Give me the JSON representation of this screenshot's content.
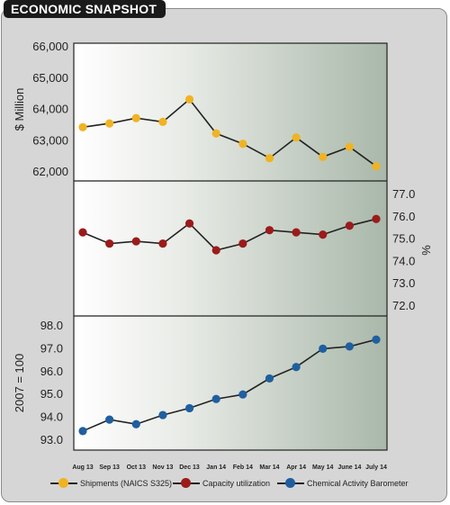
{
  "header": {
    "title": "ECONOMIC SNAPSHOT"
  },
  "chart_data": {
    "type": "line",
    "categories": [
      "Aug 13",
      "Sep 13",
      "Oct 13",
      "Nov 13",
      "Dec 13",
      "Jan 14",
      "Feb 14",
      "Mar 14",
      "Apr 14",
      "May 14",
      "June 14",
      "July 14"
    ],
    "panels": [
      {
        "series_name": "Shipments (NAICS S325)",
        "color": "#f0b323",
        "ylabel": "$ Million",
        "yticks": [
          "66,000",
          "65,000",
          "64,000",
          "63,000",
          "62,000"
        ],
        "ylim": [
          62000,
          66000
        ],
        "axis_side": "left",
        "values": [
          63430,
          63550,
          63720,
          63600,
          64320,
          63230,
          62900,
          62440,
          63100,
          62480,
          62800,
          62180
        ]
      },
      {
        "series_name": "Capacity utilization",
        "color": "#9b1b1b",
        "ylabel": "%",
        "yticks": [
          "77.0",
          "76.0",
          "75.0",
          "74.0",
          "73.0",
          "72.0"
        ],
        "ylim": [
          72,
          77
        ],
        "axis_side": "right",
        "values": [
          75.3,
          74.8,
          74.9,
          74.8,
          75.7,
          74.5,
          74.8,
          75.4,
          75.3,
          75.2,
          75.6,
          75.9
        ]
      },
      {
        "series_name": "Chemical Activity Barometer",
        "color": "#1f5fa0",
        "ylabel": "2007 = 100",
        "yticks": [
          "98.0",
          "97.0",
          "96.0",
          "95.0",
          "94.0",
          "93.0"
        ],
        "ylim": [
          93,
          98
        ],
        "axis_side": "left",
        "values": [
          93.4,
          93.9,
          93.7,
          94.1,
          94.4,
          94.8,
          95.0,
          95.7,
          96.2,
          97.0,
          97.1,
          97.4
        ]
      }
    ],
    "legend": [
      "Shipments (NAICS S325)",
      "Capacity utilization",
      "Chemical Activity Barometer"
    ],
    "legend_position": "bottom",
    "grid": false
  }
}
